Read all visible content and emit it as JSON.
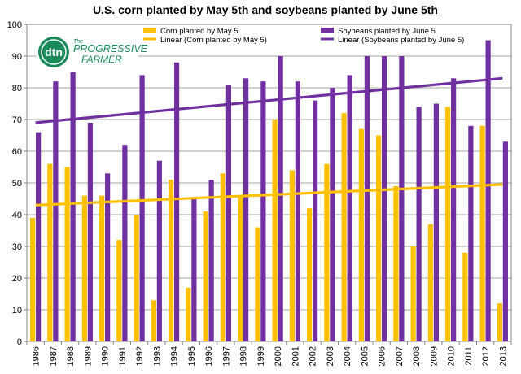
{
  "chart_data": {
    "type": "bar",
    "title": "U.S. corn planted by May 5th and soybeans planted by June 5th",
    "xlabel": "",
    "ylabel": "",
    "ylim": [
      0,
      100
    ],
    "yticks": [
      0,
      10,
      20,
      30,
      40,
      50,
      60,
      70,
      80,
      90,
      100
    ],
    "grid": true,
    "legend": "top",
    "categories": [
      "1986",
      "1987",
      "1988",
      "1989",
      "1990",
      "1991",
      "1992",
      "1993",
      "1994",
      "1995",
      "1996",
      "1997",
      "1998",
      "1999",
      "2000",
      "2001",
      "2002",
      "2003",
      "2004",
      "2005",
      "2006",
      "2007",
      "2008",
      "2009",
      "2010",
      "2011",
      "2012",
      "2013"
    ],
    "series": [
      {
        "name": "Corn planted by May 5",
        "color": "#FFC000",
        "values": [
          39,
          56,
          55,
          46,
          46,
          32,
          40,
          13,
          51,
          17,
          41,
          53,
          46,
          36,
          70,
          54,
          42,
          56,
          72,
          67,
          65,
          49,
          30,
          37,
          74,
          28,
          68,
          12
        ]
      },
      {
        "name": "Soybeans planted by June 5",
        "color": "#7030A0",
        "values": [
          66,
          82,
          85,
          69,
          53,
          62,
          84,
          57,
          88,
          45,
          51,
          81,
          83,
          82,
          90,
          82,
          76,
          80,
          84,
          90,
          90,
          90,
          74,
          75,
          83,
          68,
          95,
          63
        ]
      }
    ],
    "trendlines": [
      {
        "name": "Linear (Corn planted by May 5)",
        "color": "#FFC000",
        "start": 43,
        "end": 49.5
      },
      {
        "name": "Linear (Soybeans planted by June 5)",
        "color": "#7030A0",
        "start": 69,
        "end": 83
      }
    ]
  },
  "logo": {
    "badge": "dtn",
    "line1": "PROGRESSIVE",
    "line2": "FARMER",
    "the": "The"
  }
}
